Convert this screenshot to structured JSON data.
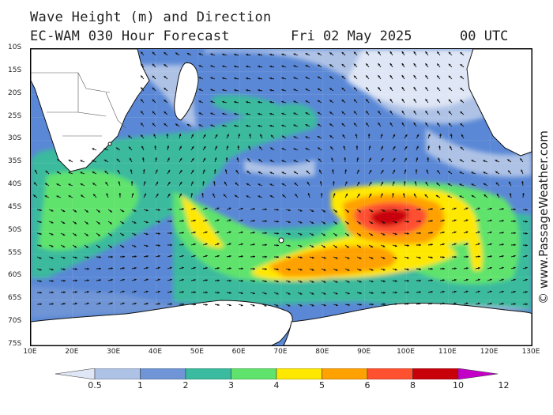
{
  "header": {
    "title": "Wave Height (m) and Direction",
    "model": "EC-WAM 030 Hour Forecast",
    "date": "Fri 02 May 2025",
    "time": "00 UTC"
  },
  "credit": "© www.PassageWeather.com",
  "map": {
    "latitude_labels": [
      "10S",
      "15S",
      "20S",
      "25S",
      "30S",
      "35S",
      "40S",
      "45S",
      "50S",
      "55S",
      "60S",
      "65S",
      "70S",
      "75S"
    ],
    "longitude_labels": [
      "10E",
      "20E",
      "30E",
      "40E",
      "50E",
      "60E",
      "70E",
      "80E",
      "90E",
      "100E",
      "110E",
      "120E",
      "130E"
    ],
    "colors": {
      "land": "#ffffff",
      "coast": "#111111",
      "arrow": "#111111"
    }
  },
  "legend": {
    "labels": [
      "0.5",
      "1",
      "2",
      "3",
      "4",
      "5",
      "6",
      "8",
      "10",
      "12"
    ],
    "bands": [
      "#dfe6f5",
      "#aec2e6",
      "#6f95d6",
      "#3aba9e",
      "#5fe36c",
      "#ffe800",
      "#ffa100",
      "#ff5030",
      "#c8000a",
      "#c400c8"
    ]
  }
}
